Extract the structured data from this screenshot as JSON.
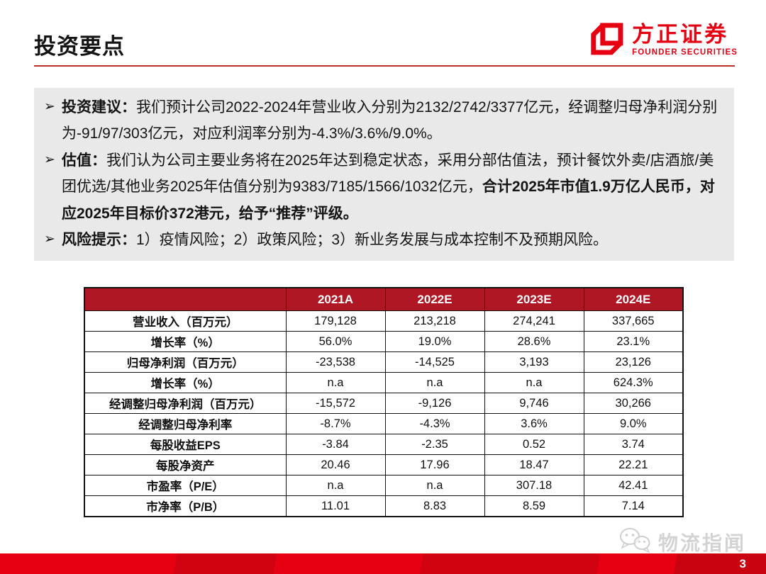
{
  "header": {
    "title": "投资要点",
    "logo": {
      "name_cn": "方正证券",
      "name_en": "FOUNDER SECURITIES"
    }
  },
  "highlights": {
    "marker": "➢",
    "bullets": [
      {
        "segments": [
          {
            "text": "投资建议：",
            "bold": true
          },
          {
            "text": "我们预计公司2022-2024年营业收入分别为2132/2742/3377亿元，经调整归母净利润分别为-91/97/303亿元，对应利润率分别为-4.3%/3.6%/9.0%。",
            "bold": false
          }
        ]
      },
      {
        "segments": [
          {
            "text": "估值：",
            "bold": true
          },
          {
            "text": "我们认为公司主要业务将在2025年达到稳定状态，采用分部估值法，预计餐饮外卖/店酒旅/美团优选/其他业务2025年估值分别为9383/7185/1566/1032亿元，",
            "bold": false
          },
          {
            "text": "合计2025年市值1.9万亿人民币，对应2025年目标价372港元，给予“推荐”评级。",
            "bold": true
          }
        ]
      },
      {
        "segments": [
          {
            "text": "风险提示：",
            "bold": true
          },
          {
            "text": "1）疫情风险；2）政策风险；3）新业务发展与成本控制不及预期风险。",
            "bold": false
          }
        ]
      }
    ]
  },
  "table": {
    "columns": [
      "",
      "2021A",
      "2022E",
      "2023E",
      "2024E"
    ],
    "rows": [
      {
        "label": "营业收入（百万元）",
        "values": [
          "179,128",
          "213,218",
          "274,241",
          "337,665"
        ]
      },
      {
        "label": "增长率（%）",
        "values": [
          "56.0%",
          "19.0%",
          "28.6%",
          "23.1%"
        ]
      },
      {
        "label": "归母净利润（百万元）",
        "values": [
          "-23,538",
          "-14,525",
          "3,193",
          "23,126"
        ]
      },
      {
        "label": "增长率（%）",
        "values": [
          "n.a",
          "n.a",
          "n.a",
          "624.3%"
        ]
      },
      {
        "label": "经调整归母净利润（百万元）",
        "values": [
          "-15,572",
          "-9,126",
          "9,746",
          "30,266"
        ]
      },
      {
        "label": "经调整归母净利率",
        "values": [
          "-8.7%",
          "-4.3%",
          "3.6%",
          "9.0%"
        ]
      },
      {
        "label": "每股收益EPS",
        "values": [
          "-3.84",
          "-2.35",
          "0.52",
          "3.74"
        ]
      },
      {
        "label": "每股净资产",
        "values": [
          "20.46",
          "17.96",
          "18.47",
          "22.21"
        ]
      },
      {
        "label": "市盈率（P/E）",
        "values": [
          "n.a",
          "n.a",
          "307.18",
          "42.41"
        ]
      },
      {
        "label": "市净率（P/B）",
        "values": [
          "11.01",
          "8.83",
          "8.59",
          "7.14"
        ]
      }
    ]
  },
  "watermark": {
    "text": "物流指闻"
  },
  "footer": {
    "page_number": "3"
  },
  "colors": {
    "brand_red": "#e60012",
    "table_header_red": "#b01724",
    "title_rule_red": "#bf2e26",
    "highlight_box_gray": "#e9e9e9",
    "footer_bar_red": "#e2000f"
  }
}
